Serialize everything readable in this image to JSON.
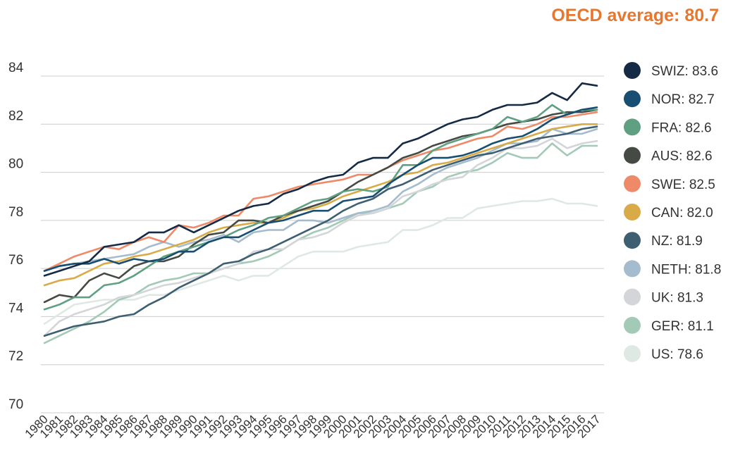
{
  "header": {
    "average_label": "OECD average:",
    "average_value": "80.7"
  },
  "colors": {
    "accent": "#e8772e",
    "grid": "#cccccc",
    "text": "#333333"
  },
  "chart_data": {
    "type": "line",
    "title": "",
    "xlabel": "",
    "ylabel": "",
    "x": [
      "1980",
      "1981",
      "1982",
      "1983",
      "1984",
      "1985",
      "1986",
      "1987",
      "1988",
      "1989",
      "1990",
      "1991",
      "1992",
      "1993",
      "1994",
      "1995",
      "1996",
      "1997",
      "1998",
      "1999",
      "2000",
      "2001",
      "2002",
      "2003",
      "2004",
      "2005",
      "2006",
      "2007",
      "2008",
      "2009",
      "2010",
      "2011",
      "2012",
      "2013",
      "2014",
      "2015",
      "2016",
      "2017"
    ],
    "ylim": [
      70,
      84
    ],
    "yticks": [
      70,
      72,
      74,
      76,
      78,
      80,
      82,
      84
    ],
    "grid": true,
    "legend_position": "right",
    "series": [
      {
        "name": "US",
        "legend_label": "US: 78.6",
        "color": "#dfe9e3",
        "values": [
          73.7,
          74.1,
          74.5,
          74.6,
          74.7,
          74.7,
          74.7,
          74.9,
          74.9,
          75.1,
          75.3,
          75.5,
          75.7,
          75.5,
          75.7,
          75.7,
          76.1,
          76.5,
          76.7,
          76.7,
          76.7,
          76.9,
          77.0,
          77.1,
          77.6,
          77.6,
          77.8,
          78.1,
          78.1,
          78.5,
          78.6,
          78.7,
          78.8,
          78.8,
          78.9,
          78.7,
          78.7,
          78.6
        ]
      },
      {
        "name": "GER",
        "legend_label": "GER: 81.1",
        "color": "#a3c9b7",
        "values": [
          72.9,
          73.2,
          73.5,
          73.8,
          74.2,
          74.7,
          74.9,
          75.3,
          75.5,
          75.6,
          75.8,
          75.8,
          76.0,
          76.2,
          76.3,
          76.5,
          76.8,
          77.2,
          77.5,
          77.7,
          78.0,
          78.3,
          78.3,
          78.5,
          78.7,
          79.2,
          79.4,
          79.8,
          80.0,
          80.1,
          80.4,
          80.8,
          80.6,
          80.6,
          81.2,
          80.7,
          81.1,
          81.1
        ]
      },
      {
        "name": "UK",
        "legend_label": "UK: 81.3",
        "color": "#d3d5d9",
        "values": [
          73.2,
          73.8,
          74.1,
          74.3,
          74.5,
          74.8,
          74.9,
          75.1,
          75.3,
          75.4,
          75.6,
          75.8,
          76.0,
          76.2,
          76.7,
          76.8,
          76.8,
          77.2,
          77.3,
          77.5,
          77.9,
          78.2,
          78.3,
          78.5,
          79.0,
          79.2,
          79.5,
          79.7,
          79.8,
          80.3,
          80.6,
          81.0,
          81.0,
          81.1,
          81.4,
          81.0,
          81.2,
          81.3
        ]
      },
      {
        "name": "NETH",
        "legend_label": "NETH: 81.8",
        "color": "#a4bccd",
        "values": [
          75.9,
          76.1,
          76.2,
          76.3,
          76.4,
          76.5,
          76.6,
          76.9,
          77.1,
          76.9,
          77.1,
          77.2,
          77.4,
          77.1,
          77.5,
          77.6,
          77.6,
          78.0,
          78.0,
          77.9,
          78.1,
          78.3,
          78.4,
          78.6,
          79.2,
          79.5,
          79.9,
          80.2,
          80.4,
          80.6,
          80.9,
          81.2,
          81.2,
          81.3,
          81.8,
          81.6,
          81.6,
          81.8
        ]
      },
      {
        "name": "NZ",
        "legend_label": "NZ: 81.9",
        "color": "#3e5f72",
        "values": [
          73.2,
          73.4,
          73.6,
          73.7,
          73.8,
          74.0,
          74.1,
          74.5,
          74.8,
          75.2,
          75.5,
          75.8,
          76.2,
          76.3,
          76.6,
          76.8,
          77.1,
          77.4,
          77.7,
          78.0,
          78.4,
          78.7,
          78.9,
          79.3,
          79.5,
          79.8,
          80.1,
          80.3,
          80.5,
          80.7,
          80.8,
          81.0,
          81.2,
          81.4,
          81.5,
          81.6,
          81.8,
          81.9
        ]
      },
      {
        "name": "CAN",
        "legend_label": "CAN: 82.0",
        "color": "#d9ab48",
        "values": [
          75.3,
          75.5,
          75.6,
          75.9,
          76.2,
          76.3,
          76.5,
          76.6,
          76.8,
          77.0,
          77.2,
          77.5,
          77.7,
          77.8,
          77.9,
          77.9,
          78.1,
          78.4,
          78.5,
          78.7,
          79.0,
          79.2,
          79.4,
          79.6,
          79.9,
          80.0,
          80.3,
          80.4,
          80.6,
          80.8,
          81.0,
          81.2,
          81.4,
          81.6,
          81.8,
          81.9,
          82.0,
          82.0
        ]
      },
      {
        "name": "SWE",
        "legend_label": "SWE: 82.5",
        "color": "#ef8a68",
        "values": [
          75.9,
          76.2,
          76.5,
          76.7,
          76.9,
          76.8,
          77.1,
          77.3,
          77.1,
          77.8,
          77.7,
          77.9,
          78.2,
          78.2,
          78.9,
          79.0,
          79.2,
          79.4,
          79.5,
          79.6,
          79.7,
          79.9,
          79.9,
          80.2,
          80.5,
          80.7,
          80.9,
          81.0,
          81.2,
          81.4,
          81.5,
          81.9,
          81.8,
          82.0,
          82.3,
          82.3,
          82.4,
          82.5
        ]
      },
      {
        "name": "AUS",
        "legend_label": "AUS: 82.6",
        "color": "#454a44",
        "values": [
          74.6,
          74.9,
          74.8,
          75.5,
          75.8,
          75.6,
          76.1,
          76.3,
          76.3,
          76.5,
          77.0,
          77.4,
          77.5,
          78.0,
          78.0,
          77.9,
          78.2,
          78.4,
          78.6,
          78.8,
          79.2,
          79.6,
          79.9,
          80.2,
          80.6,
          80.8,
          81.1,
          81.3,
          81.5,
          81.6,
          81.8,
          82.0,
          82.1,
          82.2,
          82.4,
          82.5,
          82.5,
          82.6
        ]
      },
      {
        "name": "FRA",
        "legend_label": "FRA: 82.6",
        "color": "#5fa082",
        "values": [
          74.3,
          74.5,
          74.8,
          74.8,
          75.3,
          75.4,
          75.7,
          76.1,
          76.5,
          76.7,
          76.9,
          77.1,
          77.3,
          77.6,
          77.8,
          78.1,
          78.2,
          78.5,
          78.8,
          78.9,
          79.2,
          79.3,
          79.2,
          79.4,
          80.3,
          80.3,
          80.9,
          81.2,
          81.4,
          81.6,
          81.8,
          82.3,
          82.1,
          82.3,
          82.8,
          82.4,
          82.6,
          82.6
        ]
      },
      {
        "name": "NOR",
        "legend_label": "NOR: 82.7",
        "color": "#174e71",
        "values": [
          75.9,
          76.1,
          76.2,
          76.2,
          76.4,
          76.2,
          76.4,
          76.3,
          76.4,
          76.7,
          76.7,
          77.1,
          77.3,
          77.3,
          77.6,
          77.9,
          78.0,
          78.2,
          78.4,
          78.4,
          78.8,
          78.9,
          79.0,
          79.5,
          79.9,
          80.3,
          80.6,
          80.6,
          80.7,
          80.9,
          81.2,
          81.4,
          81.5,
          81.8,
          82.2,
          82.4,
          82.6,
          82.7
        ]
      },
      {
        "name": "SWIZ",
        "legend_label": "SWIZ: 83.6",
        "color": "#142a45",
        "values": [
          75.7,
          75.9,
          76.1,
          76.3,
          76.9,
          77.0,
          77.1,
          77.5,
          77.5,
          77.8,
          77.5,
          77.8,
          78.1,
          78.4,
          78.6,
          78.7,
          79.1,
          79.3,
          79.6,
          79.8,
          79.9,
          80.4,
          80.6,
          80.6,
          81.2,
          81.4,
          81.7,
          82.0,
          82.2,
          82.3,
          82.6,
          82.8,
          82.8,
          82.9,
          83.3,
          83.0,
          83.7,
          83.6
        ]
      }
    ],
    "legend_order": [
      "SWIZ",
      "NOR",
      "FRA",
      "AUS",
      "SWE",
      "CAN",
      "NZ",
      "NETH",
      "UK",
      "GER",
      "US"
    ]
  }
}
